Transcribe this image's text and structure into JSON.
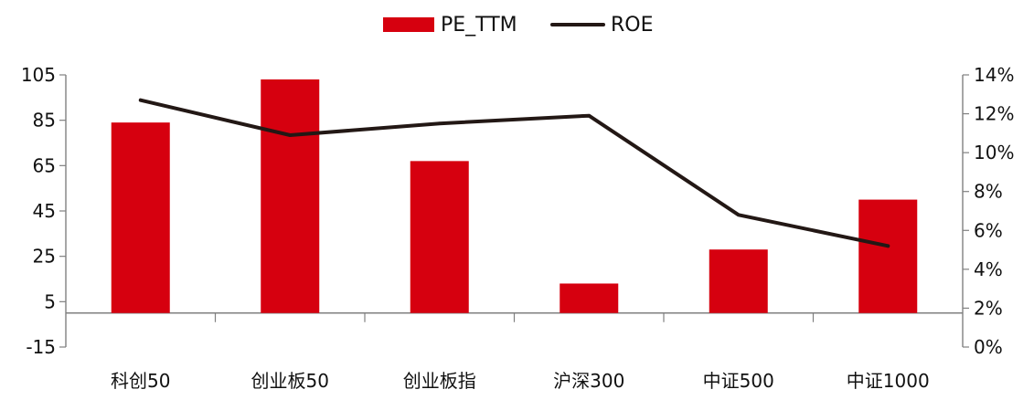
{
  "chart_data": {
    "type": "bar",
    "categories": [
      "科创50",
      "创业板50",
      "创业板指",
      "沪深300",
      "中证500",
      "中证1000"
    ],
    "series": [
      {
        "name": "PE_TTM",
        "type": "bar",
        "axis": "left",
        "values": [
          84,
          103,
          67,
          13,
          28,
          50
        ]
      },
      {
        "name": "ROE",
        "type": "line",
        "axis": "right",
        "values": [
          12.7,
          10.9,
          11.5,
          11.9,
          6.8,
          5.2
        ]
      }
    ],
    "y_left": {
      "min": -15,
      "max": 105,
      "ticks": [
        "105",
        "85",
        "65",
        "45",
        "25",
        "5",
        "-15"
      ],
      "tick_values": [
        105,
        85,
        65,
        45,
        25,
        5,
        -15
      ]
    },
    "y_right": {
      "min": 0,
      "max": 14,
      "ticks": [
        "14%",
        "12%",
        "10%",
        "8%",
        "6%",
        "4%",
        "2%",
        "0%"
      ],
      "tick_values": [
        14,
        12,
        10,
        8,
        6,
        4,
        2,
        0
      ]
    },
    "legend": {
      "position": "top-center",
      "items": [
        {
          "label": "PE_TTM",
          "kind": "bar"
        },
        {
          "label": "ROE",
          "kind": "line"
        }
      ]
    },
    "colors": {
      "bar": "#d6000f",
      "line": "#231815",
      "axis": "#808080",
      "text": "#111111"
    },
    "grid": false
  }
}
